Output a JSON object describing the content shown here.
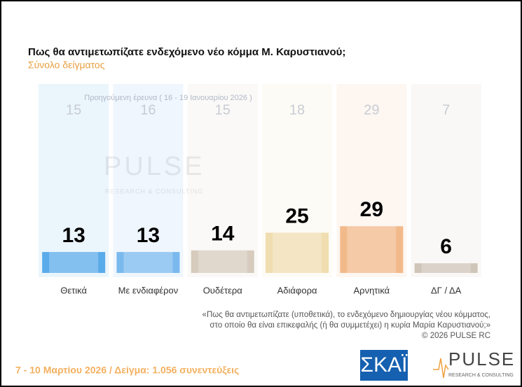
{
  "chart_data": {
    "type": "bar",
    "title": "Πως θα αντιμετωπίζατε ενδεχόμενο νέο κόμμα Μ. Καρυστιανού;",
    "subtitle": "Σύνολο δείγματος",
    "categories": [
      "Θετικά",
      "Με ενδιαφέρον",
      "Ουδέτερα",
      "Αδιάφορα",
      "Αρνητικά",
      "ΔΓ / ΔΑ"
    ],
    "values": [
      13,
      13,
      14,
      25,
      29,
      6
    ],
    "colors": [
      "#5aabea",
      "#7ab9ee",
      "#d6cbbd",
      "#f0ddb0",
      "#f2b98a",
      "#cfc5b8"
    ],
    "previous": {
      "label": "Προηγούμενη έρευνα ( 16 - 19 Ιανουαρίου 2026 )",
      "values": [
        15,
        16,
        15,
        18,
        29,
        7
      ]
    },
    "note": [
      "«Πως θα αντιμετωπίζατε (υποθετικά), το ενδεχόμενο δημιουργίας νέου κόμματος,",
      "στο οποίο θα είναι επικεφαλής (ή θα συμμετέχει) η κυρία Μαρία Καρυστιανού;»",
      "©  2026  PULSE RC"
    ],
    "footer": "7 - 10  Μαρτίου 2026  /  Δείγμα:  1.056 συνεντεύξεις",
    "logos": {
      "skai": "ΣΚΑΪ",
      "pulse": "PULSE",
      "pulse_sub": "RESEARCH & CONSULTING"
    }
  }
}
